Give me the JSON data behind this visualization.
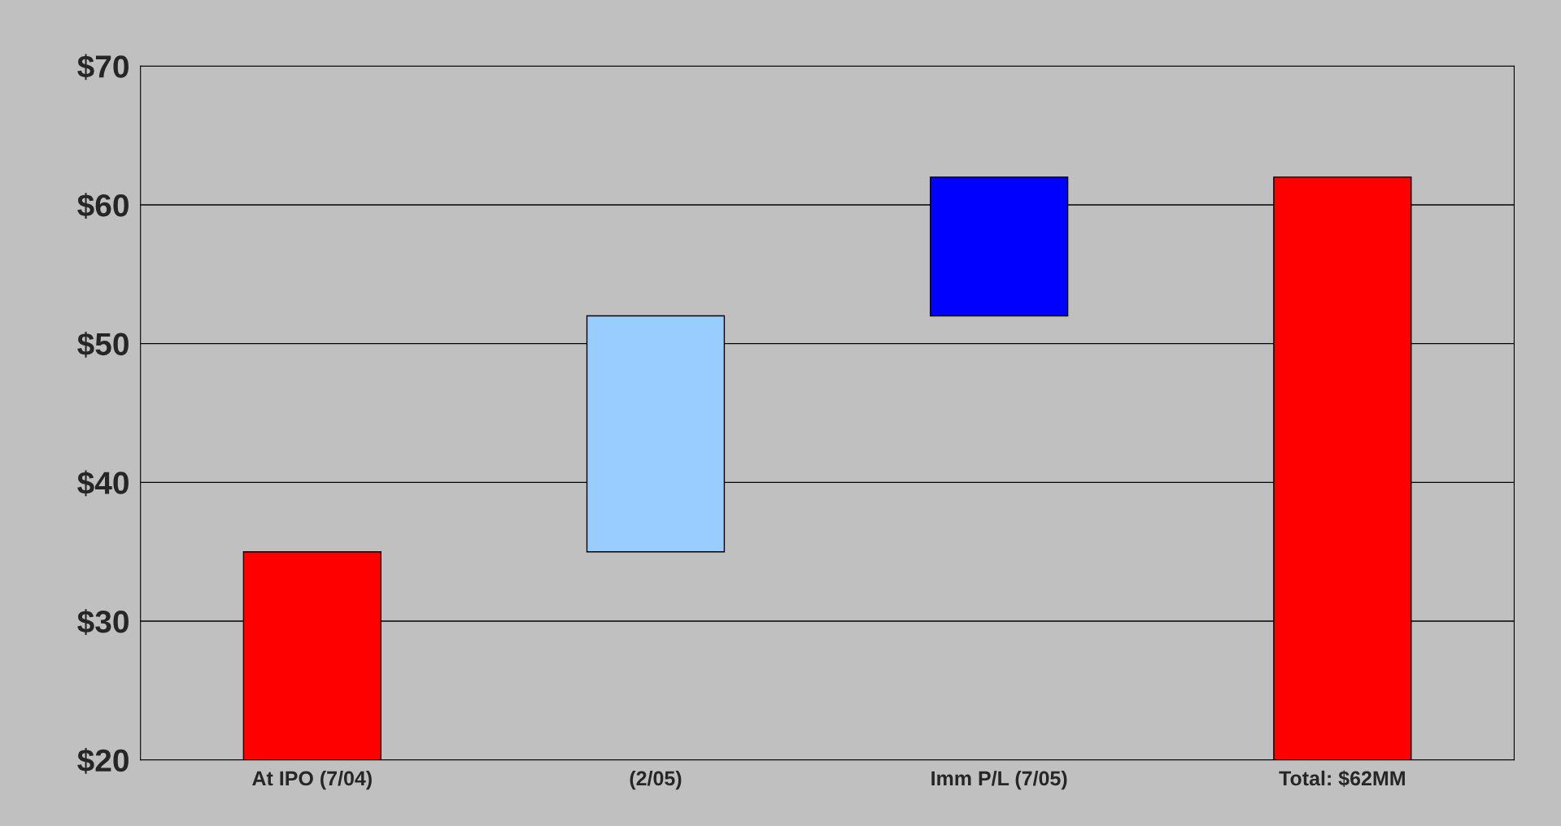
{
  "chart_data": {
    "type": "bar",
    "categories": [
      "At IPO (7/04)",
      "(2/05)",
      "Imm P/L (7/05)",
      "Total: $62MM"
    ],
    "values": [
      15,
      17,
      10,
      42
    ],
    "base": [
      20,
      35,
      52,
      20
    ],
    "colors": [
      "#ff0000",
      "#99ccff",
      "#0000ff",
      "#ff0000"
    ],
    "ylim": [
      20,
      70
    ],
    "yticks": [
      {
        "value": 20,
        "label": "$20"
      },
      {
        "value": 30,
        "label": "$30"
      },
      {
        "value": 40,
        "label": "$40"
      },
      {
        "value": 50,
        "label": "$50"
      },
      {
        "value": 60,
        "label": "$60"
      },
      {
        "value": 70,
        "label": "$70"
      }
    ],
    "grid": "y"
  }
}
